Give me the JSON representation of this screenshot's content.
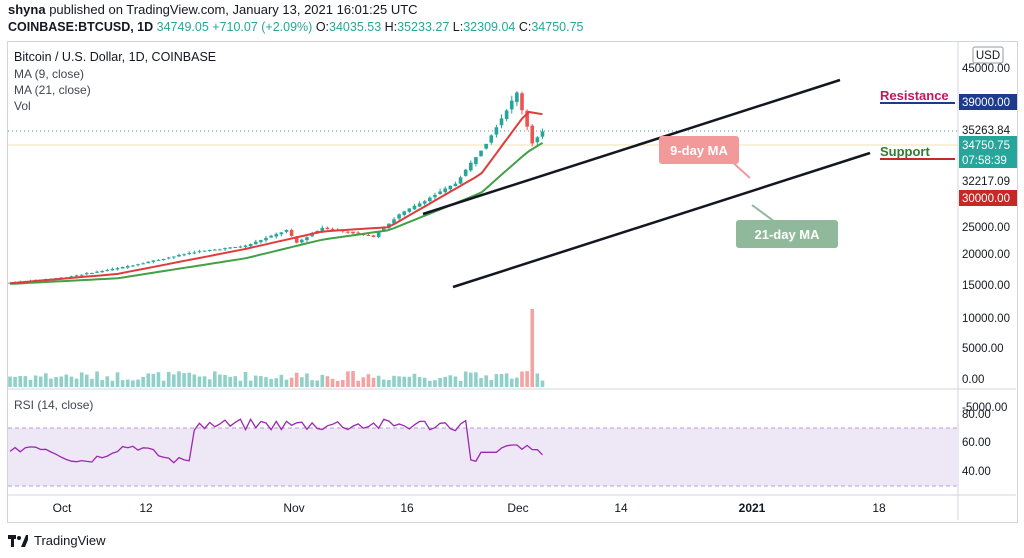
{
  "header": {
    "publisher": "shyna",
    "published_text": "published on TradingView.com, January 13, 2021 16:01:25 UTC",
    "symbol": "COINBASE:BTCUSD, 1D",
    "last": "34749.05",
    "change": "+710.07 (+2.09%)",
    "open_label": "O:",
    "open": "34035.53",
    "high_label": "H:",
    "high": "35233.27",
    "low_label": "L:",
    "low": "32309.04",
    "close_label": "C:",
    "close": "34750.75"
  },
  "legend": {
    "title": "Bitcoin / U.S. Dollar, 1D, COINBASE",
    "ma9": "MA (9, close)",
    "ma21": "MA (21, close)",
    "vol": "Vol",
    "rsi": "RSI (14, close)"
  },
  "footer": {
    "brand": "TradingView"
  },
  "colors": {
    "up": "#26a69a",
    "down": "#ef5350",
    "ma9": "#e03c3c",
    "ma21": "#43a047",
    "rsi": "#9c27b0",
    "resistance": "#c2185b",
    "support": "#2e7d32",
    "navy": "#1e3a8a"
  },
  "chart_data": {
    "type": "line",
    "title": "Bitcoin / U.S. Dollar, 1D, COINBASE",
    "ylim": [
      -5000,
      45000
    ],
    "price_axis_labels": [
      "USD",
      "45000.00",
      "39000.00",
      "35263.84",
      "34750.75",
      "07:58:39",
      "32217.09",
      "30000.00",
      "25000.00",
      "20000.00",
      "15000.00",
      "10000.00",
      "5000.00",
      "0.00",
      "-5000.00"
    ],
    "time_labels": [
      "Oct",
      "12",
      "Nov",
      "16",
      "Dec",
      "14",
      "2021",
      "18"
    ],
    "price_series_approx": [
      {
        "x": "Oct 1",
        "y": 10600
      },
      {
        "x": "Oct 12",
        "y": 11500
      },
      {
        "x": "Oct 22",
        "y": 12900
      },
      {
        "x": "Nov 6",
        "y": 15500
      },
      {
        "x": "Nov 16",
        "y": 16500
      },
      {
        "x": "Nov 24",
        "y": 19000
      },
      {
        "x": "Nov 26",
        "y": 17000
      },
      {
        "x": "Dec 1",
        "y": 19400
      },
      {
        "x": "Dec 11",
        "y": 18000
      },
      {
        "x": "Dec 16",
        "y": 21500
      },
      {
        "x": "Dec 27",
        "y": 26500
      },
      {
        "x": "Jan 2",
        "y": 33000
      },
      {
        "x": "Jan 8",
        "y": 41000
      },
      {
        "x": "Jan 11",
        "y": 33000
      },
      {
        "x": "Jan 13",
        "y": 34750
      }
    ],
    "ma9_approx": [
      {
        "x": "Oct 1",
        "y": 10500
      },
      {
        "x": "Oct 22",
        "y": 12000
      },
      {
        "x": "Nov 16",
        "y": 16000
      },
      {
        "x": "Dec 1",
        "y": 18800
      },
      {
        "x": "Dec 14",
        "y": 19500
      },
      {
        "x": "Jan 1",
        "y": 28000
      },
      {
        "x": "Jan 10",
        "y": 38000
      },
      {
        "x": "Jan 13",
        "y": 37600
      }
    ],
    "ma21_approx": [
      {
        "x": "Oct 1",
        "y": 10400
      },
      {
        "x": "Oct 22",
        "y": 11300
      },
      {
        "x": "Nov 16",
        "y": 14500
      },
      {
        "x": "Dec 1",
        "y": 17500
      },
      {
        "x": "Dec 14",
        "y": 19000
      },
      {
        "x": "Jan 1",
        "y": 25000
      },
      {
        "x": "Jan 10",
        "y": 31500
      },
      {
        "x": "Jan 13",
        "y": 33000
      }
    ],
    "rsi": {
      "ylim": [
        20,
        100
      ],
      "tick_labels": [
        "80.00",
        "60.00",
        "40.00"
      ],
      "last": 61
    }
  },
  "annotations": {
    "resistance": "Resistance",
    "support": "Support",
    "ma9_label": "9-day MA",
    "ma21_label": "21-day MA"
  }
}
